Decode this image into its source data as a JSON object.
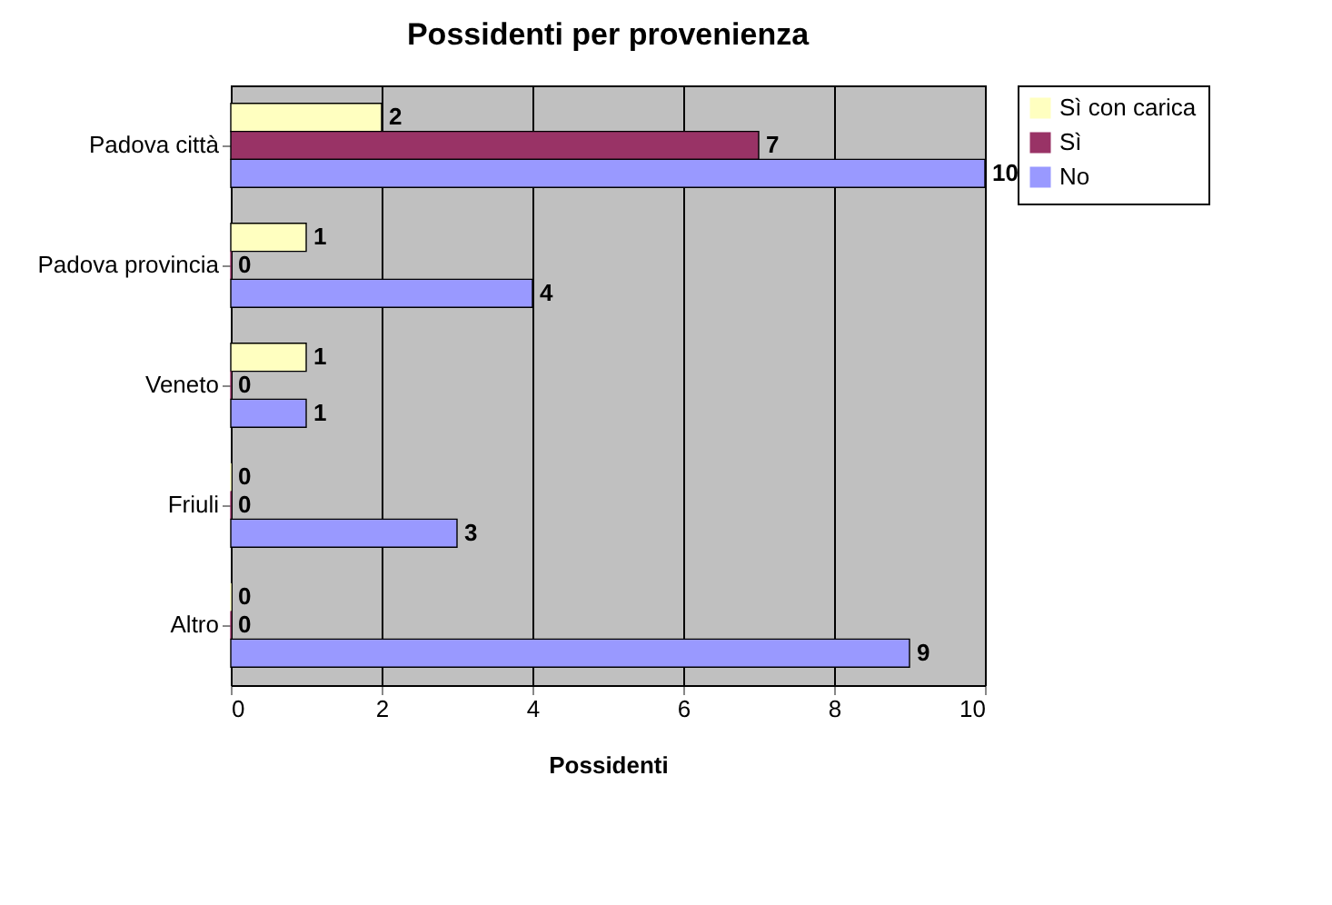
{
  "chart_data": {
    "type": "bar",
    "orientation": "horizontal",
    "title": "Possidenti per provenienza",
    "xlabel": "Possidenti",
    "categories": [
      "Padova città",
      "Padova provincia",
      "Veneto",
      "Friuli",
      "Altro"
    ],
    "series": [
      {
        "name": "Sì con carica",
        "color": "#ffffc0",
        "values": [
          2,
          1,
          1,
          0,
          0
        ]
      },
      {
        "name": "Sì",
        "color": "#993366",
        "values": [
          7,
          0,
          0,
          0,
          0
        ]
      },
      {
        "name": "No",
        "color": "#9999ff",
        "values": [
          10,
          4,
          1,
          3,
          9
        ]
      }
    ],
    "xlim": [
      0,
      10
    ],
    "xticks": [
      0,
      2,
      4,
      6,
      8,
      10
    ],
    "grid": "x",
    "legend": "right",
    "data_labels": true
  }
}
